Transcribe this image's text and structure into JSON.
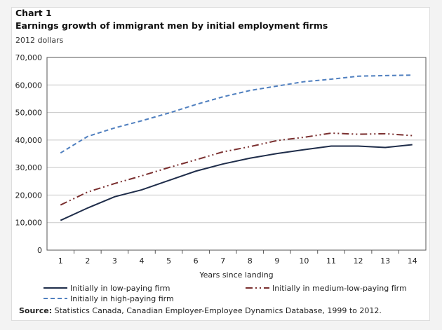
{
  "chart_data": {
    "type": "line",
    "label": "Chart 1",
    "title": "Earnings growth of immigrant men by initial employment firms",
    "unit": "2012 dollars",
    "xlabel": "Years since landing",
    "ylabel": "",
    "categories": [
      1,
      2,
      3,
      4,
      5,
      6,
      7,
      8,
      9,
      10,
      11,
      12,
      13,
      14
    ],
    "ylim": [
      0,
      70000
    ],
    "yticks": [
      0,
      10000,
      20000,
      30000,
      40000,
      50000,
      60000,
      70000
    ],
    "ytick_labels": [
      "0",
      "10,000",
      "20,000",
      "30,000",
      "40,000",
      "50,000",
      "60,000",
      "70,000"
    ],
    "grid": true,
    "legend_position": "bottom",
    "series": [
      {
        "name": "Initially in low-paying firm",
        "color": "#1f2d4a",
        "style": "solid",
        "values": [
          10800,
          15300,
          19400,
          21900,
          25300,
          28700,
          31300,
          33400,
          35100,
          36500,
          37800,
          37800,
          37300,
          38300
        ]
      },
      {
        "name": "Initially in medium-low-paying firm",
        "color": "#7a2f2f",
        "style": "dash-dot-dot",
        "values": [
          16400,
          21100,
          24200,
          27000,
          30000,
          32800,
          35700,
          37600,
          39800,
          41000,
          42500,
          42100,
          42300,
          41600
        ]
      },
      {
        "name": "Initially in high-paying firm",
        "color": "#4f7fbf",
        "style": "dashed",
        "values": [
          35300,
          41300,
          44400,
          47000,
          49800,
          52900,
          55700,
          58000,
          59600,
          61200,
          62100,
          63200,
          63400,
          63600
        ]
      }
    ]
  },
  "source": {
    "label": "Source:",
    "text": " Statistics Canada, Canadian Employer-Employee Dynamics Database, 1999 to 2012."
  }
}
